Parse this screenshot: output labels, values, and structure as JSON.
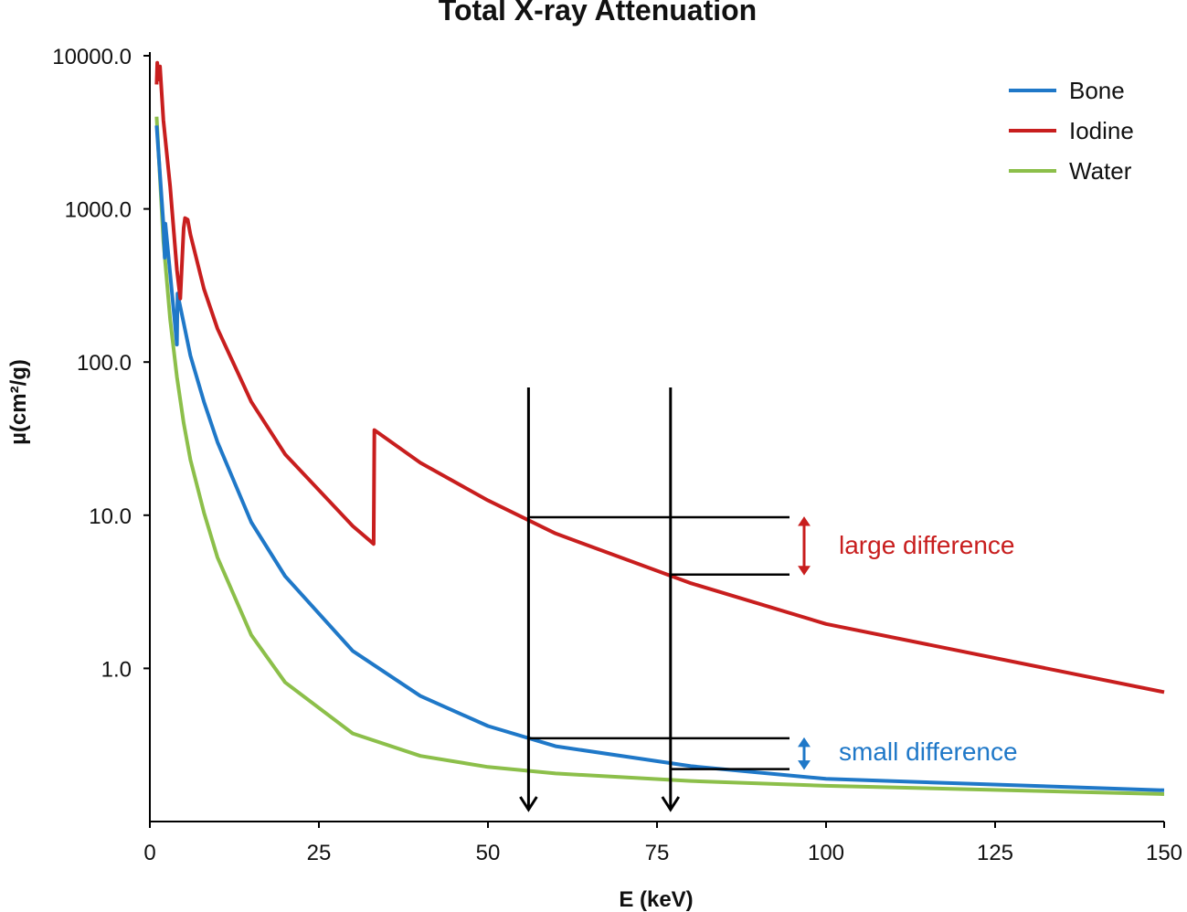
{
  "chart_data": {
    "type": "line",
    "title": "Total X-ray Attenuation",
    "xlabel": "E (keV)",
    "ylabel": "µ(cm²/g)",
    "xlim": [
      0,
      150
    ],
    "ylim": [
      0.1,
      10000
    ],
    "yscale": "log",
    "grid": false,
    "legend_position": "top-right",
    "x_ticks": [
      "0",
      "25",
      "50",
      "75",
      "100",
      "125",
      "150"
    ],
    "y_ticks": [
      {
        "value": 10000,
        "label": "10000.0"
      },
      {
        "value": 1000,
        "label": "1000.0"
      },
      {
        "value": 100,
        "label": "100.0"
      },
      {
        "value": 10,
        "label": "10.0"
      },
      {
        "value": 1,
        "label": "1.0"
      }
    ],
    "series": [
      {
        "name": "Bone",
        "color": "#1f78c8",
        "points": [
          [
            1,
            3500
          ],
          [
            2,
            800
          ],
          [
            2.2,
            480
          ],
          [
            2.3,
            800
          ],
          [
            4,
            130
          ],
          [
            4.1,
            280
          ],
          [
            5,
            180
          ],
          [
            6,
            110
          ],
          [
            8,
            55
          ],
          [
            10,
            30
          ],
          [
            15,
            9
          ],
          [
            20,
            4
          ],
          [
            30,
            1.3
          ],
          [
            40,
            0.66
          ],
          [
            50,
            0.42
          ],
          [
            60,
            0.31
          ],
          [
            80,
            0.23
          ],
          [
            100,
            0.19
          ],
          [
            150,
            0.16
          ]
        ]
      },
      {
        "name": "Iodine",
        "color": "#c81e1e",
        "points": [
          [
            1,
            6500
          ],
          [
            1.1,
            9000
          ],
          [
            1.3,
            7000
          ],
          [
            1.5,
            8500
          ],
          [
            2,
            3800
          ],
          [
            3,
            1400
          ],
          [
            4,
            400
          ],
          [
            4.5,
            260
          ],
          [
            5,
            750
          ],
          [
            5.2,
            870
          ],
          [
            5.6,
            850
          ],
          [
            6,
            680
          ],
          [
            8,
            300
          ],
          [
            10,
            165
          ],
          [
            15,
            55
          ],
          [
            20,
            25
          ],
          [
            30,
            8.5
          ],
          [
            33.1,
            6.5
          ],
          [
            33.2,
            36
          ],
          [
            40,
            22
          ],
          [
            50,
            12.5
          ],
          [
            60,
            7.6
          ],
          [
            80,
            3.6
          ],
          [
            100,
            1.95
          ],
          [
            150,
            0.7
          ]
        ]
      },
      {
        "name": "Water",
        "color": "#8cbf4a",
        "points": [
          [
            1,
            4000
          ],
          [
            2,
            620
          ],
          [
            3,
            190
          ],
          [
            4,
            80
          ],
          [
            5,
            40
          ],
          [
            6,
            23
          ],
          [
            8,
            10.4
          ],
          [
            10,
            5.3
          ],
          [
            15,
            1.65
          ],
          [
            20,
            0.81
          ],
          [
            30,
            0.376
          ],
          [
            40,
            0.268
          ],
          [
            50,
            0.227
          ],
          [
            60,
            0.206
          ],
          [
            80,
            0.184
          ],
          [
            100,
            0.171
          ],
          [
            150,
            0.151
          ]
        ]
      }
    ],
    "annotations": [
      {
        "text": "large difference",
        "color": "#c81e1e"
      },
      {
        "text": "small difference",
        "color": "#1f78c8"
      }
    ],
    "markers": {
      "energies": [
        56,
        77
      ],
      "iodine_levels": [
        9.7,
        4.1
      ],
      "bone_levels": [
        0.35,
        0.22
      ]
    }
  }
}
